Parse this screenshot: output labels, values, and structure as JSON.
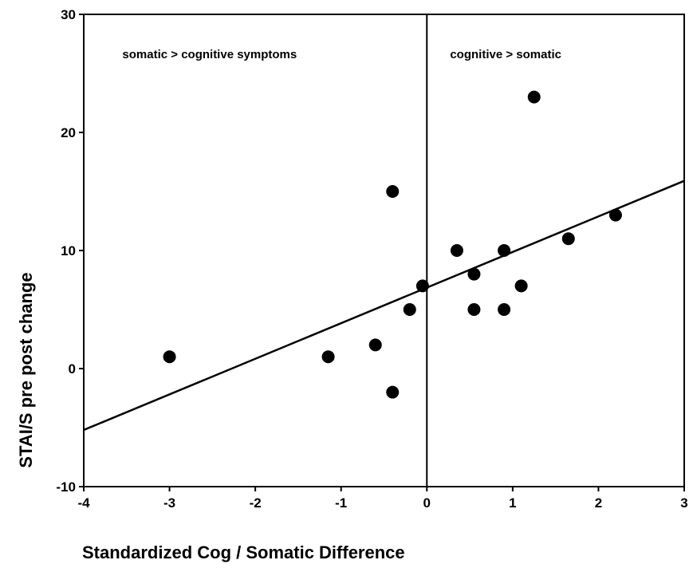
{
  "chart_data": {
    "type": "scatter",
    "xlabel": "Standardized Cog / Somatic Difference",
    "ylabel": "STAI/S pre post change",
    "xlim": [
      -4,
      3
    ],
    "ylim": [
      -10,
      30
    ],
    "x_ticks": [
      -4,
      -3,
      -2,
      -1,
      0,
      1,
      2,
      3
    ],
    "y_ticks": [
      -10,
      0,
      10,
      20,
      30
    ],
    "grid": false,
    "legend": "none",
    "series": [
      {
        "points": [
          {
            "x": -3.0,
            "y": 1
          },
          {
            "x": -1.15,
            "y": 1
          },
          {
            "x": -0.6,
            "y": 2
          },
          {
            "x": -0.4,
            "y": -2
          },
          {
            "x": -0.4,
            "y": 15
          },
          {
            "x": -0.2,
            "y": 5
          },
          {
            "x": -0.05,
            "y": 7
          },
          {
            "x": 0.35,
            "y": 10
          },
          {
            "x": 0.55,
            "y": 8
          },
          {
            "x": 0.55,
            "y": 5
          },
          {
            "x": 0.9,
            "y": 10
          },
          {
            "x": 0.9,
            "y": 5
          },
          {
            "x": 1.1,
            "y": 7
          },
          {
            "x": 1.25,
            "y": 23
          },
          {
            "x": 1.65,
            "y": 11
          },
          {
            "x": 2.2,
            "y": 13
          }
        ]
      }
    ],
    "fit_line": {
      "x": [
        -4,
        3
      ],
      "y": [
        -5.2,
        15.9
      ]
    },
    "reference_line_x": 0,
    "annotations": [
      {
        "text": "somatic > cognitive symptoms",
        "x": -3.55,
        "y": 26.3
      },
      {
        "text": "cognitive > somatic",
        "x": 0.27,
        "y": 26.3
      }
    ],
    "colors": {
      "marker": "#000000",
      "line": "#000000",
      "background": "#ffffff"
    }
  }
}
